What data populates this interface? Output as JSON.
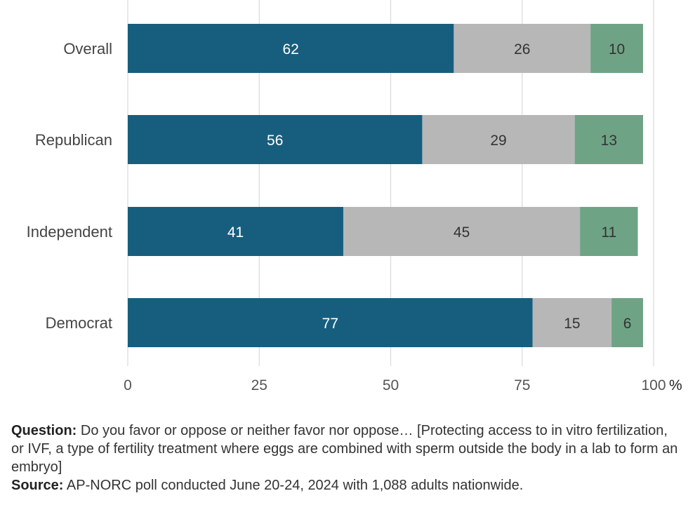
{
  "chart_data": {
    "type": "bar",
    "orientation": "horizontal",
    "stacked": true,
    "categories": [
      "Overall",
      "Republican",
      "Independent",
      "Democrat"
    ],
    "series": [
      {
        "values": [
          62,
          56,
          41,
          77
        ],
        "color": "#175e7e",
        "label_color": "#ffffff"
      },
      {
        "values": [
          26,
          29,
          45,
          15
        ],
        "color": "#b7b7b7",
        "label_color": "#333333"
      },
      {
        "values": [
          10,
          13,
          11,
          6
        ],
        "color": "#6fa386",
        "label_color": "#333333"
      }
    ],
    "xlim": [
      0,
      100
    ],
    "xticks": [
      "0",
      "25",
      "50",
      "75",
      "100"
    ],
    "x_unit": "%",
    "grid": true
  },
  "footer": {
    "question_label": "Question:",
    "question_text": " Do you favor or oppose or neither favor nor oppose… [Protecting access to in vitro fertilization, or IVF, a type of fertility treatment where eggs are combined with sperm outside the body in a lab to form an embryo]",
    "source_label": "Source:",
    "source_text": " AP-NORC poll conducted June 20-24, 2024 with 1,088 adults nationwide."
  }
}
